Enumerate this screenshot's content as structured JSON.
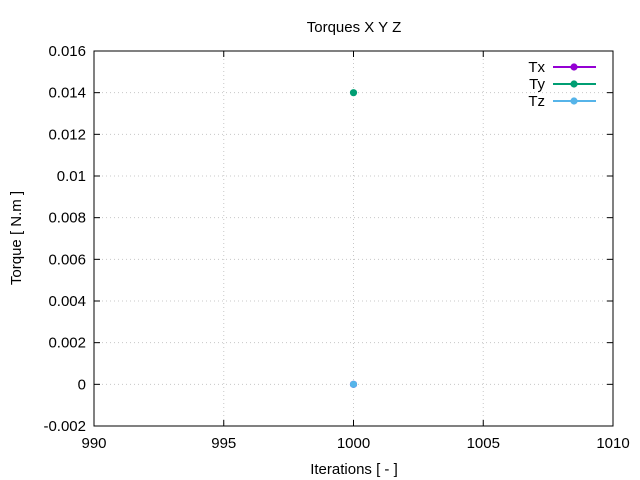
{
  "chart_data": {
    "type": "scatter",
    "title": "Torques X Y Z",
    "xlabel": "Iterations [ - ]",
    "ylabel": "Torque [ N.m ]",
    "xlim": [
      990,
      1010
    ],
    "ylim": [
      -0.002,
      0.016
    ],
    "xticks": [
      990,
      995,
      1000,
      1005,
      1010
    ],
    "xtick_labels": [
      "990",
      "995",
      "1000",
      "1005",
      "1010"
    ],
    "yticks": [
      -0.002,
      0,
      0.002,
      0.004,
      0.006,
      0.008,
      0.01,
      0.012,
      0.014,
      0.016
    ],
    "ytick_labels": [
      "-0.002",
      "0",
      "0.002",
      "0.004",
      "0.006",
      "0.008",
      "0.01",
      "0.012",
      "0.014",
      "0.016"
    ],
    "grid": true,
    "legend_position": "top-right",
    "series": [
      {
        "name": "Tx",
        "color": "#9400d3",
        "x": [
          1000
        ],
        "y": [
          0.0
        ]
      },
      {
        "name": "Ty",
        "color": "#009e73",
        "x": [
          1000
        ],
        "y": [
          0.014
        ]
      },
      {
        "name": "Tz",
        "color": "#56b4e9",
        "x": [
          1000
        ],
        "y": [
          0.0
        ]
      }
    ]
  }
}
